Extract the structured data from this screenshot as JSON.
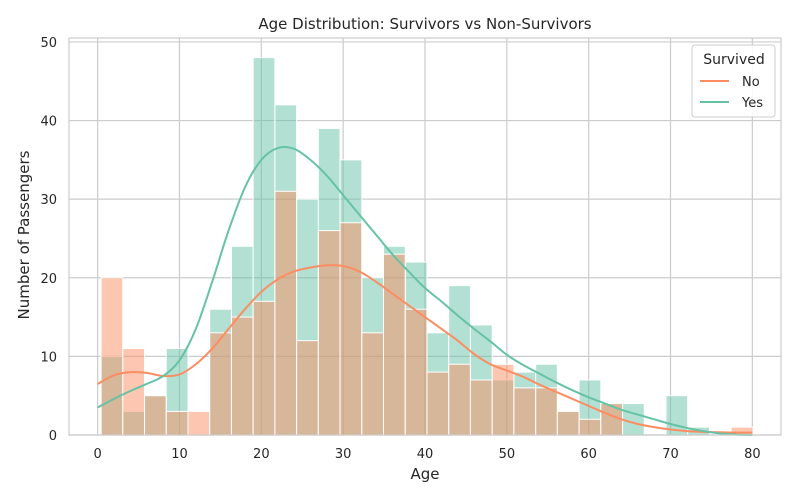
{
  "chart_data": {
    "type": "histogram",
    "title": "Age Distribution: Survivors vs Non-Survivors",
    "xlabel": "Age",
    "ylabel": "Number of Passengers",
    "xlim": [
      -3.5,
      83.5
    ],
    "ylim": [
      0,
      50.5
    ],
    "xticks": [
      0,
      10,
      20,
      30,
      40,
      50,
      60,
      70,
      80
    ],
    "yticks": [
      0,
      10,
      20,
      30,
      40,
      50
    ],
    "grid": true,
    "legend": {
      "title": "Survived",
      "placement": "top-right"
    },
    "bin_edges": [
      0.42,
      3.07,
      5.73,
      8.38,
      11.04,
      13.69,
      16.35,
      19.0,
      21.66,
      24.31,
      26.97,
      29.62,
      32.28,
      34.93,
      37.59,
      40.24,
      42.9,
      45.55,
      48.21,
      50.86,
      53.52,
      56.17,
      58.83,
      61.48,
      64.14,
      66.79,
      69.45,
      72.1,
      74.76,
      77.41,
      80.07
    ],
    "series": [
      {
        "name": "No",
        "color": "#fc8d62",
        "counts": [
          20,
          11,
          5,
          3,
          3,
          13,
          15,
          17,
          31,
          12,
          26,
          27,
          13,
          23,
          16,
          8,
          9,
          7,
          9,
          6,
          6,
          3,
          2,
          4,
          0,
          0,
          0,
          0,
          0,
          1
        ],
        "kde_x": [
          0,
          2,
          4,
          6,
          8,
          10,
          12,
          14,
          16,
          18,
          20,
          22,
          24,
          26,
          28,
          30,
          32,
          34,
          36,
          38,
          40,
          42,
          44,
          46,
          48,
          50,
          52,
          54,
          56,
          58,
          60,
          62,
          64,
          66,
          68,
          70,
          72,
          74,
          76,
          78,
          80
        ],
        "kde_y": [
          6.5,
          7.6,
          8.0,
          7.9,
          7.5,
          7.7,
          9.0,
          11.0,
          13.5,
          16.0,
          18.2,
          19.8,
          20.8,
          21.3,
          21.6,
          21.5,
          20.8,
          19.5,
          18.0,
          16.5,
          15.0,
          13.5,
          12.0,
          10.3,
          9.0,
          8.2,
          7.4,
          6.4,
          5.5,
          4.6,
          3.7,
          2.8,
          2.0,
          1.4,
          1.0,
          0.7,
          0.5,
          0.4,
          0.35,
          0.3,
          0.3
        ]
      },
      {
        "name": "Yes",
        "color": "#66c2a5",
        "counts": [
          10,
          3,
          5,
          11,
          0,
          16,
          24,
          48,
          42,
          30,
          39,
          35,
          20,
          24,
          22,
          13,
          19,
          14,
          7,
          8,
          9,
          3,
          7,
          4,
          4,
          0,
          5,
          1,
          0,
          0
        ],
        "kde_x": [
          0,
          2,
          4,
          6,
          8,
          10,
          12,
          14,
          16,
          18,
          20,
          22,
          24,
          26,
          28,
          30,
          32,
          34,
          36,
          38,
          40,
          42,
          44,
          46,
          48,
          50,
          52,
          54,
          56,
          58,
          60,
          62,
          64,
          66,
          68,
          70,
          72,
          74,
          76,
          78,
          80
        ],
        "kde_y": [
          3.5,
          4.6,
          5.6,
          6.5,
          7.5,
          9.5,
          13.5,
          19.5,
          26.0,
          31.5,
          35.0,
          36.5,
          36.4,
          35.0,
          33.0,
          30.5,
          28.0,
          25.5,
          23.0,
          20.8,
          18.7,
          17.0,
          15.2,
          13.5,
          11.9,
          10.2,
          8.9,
          7.8,
          6.7,
          5.7,
          4.8,
          4.0,
          3.2,
          2.6,
          2.0,
          1.4,
          0.9,
          0.5,
          0.2,
          0.05,
          0.0
        ]
      }
    ]
  }
}
